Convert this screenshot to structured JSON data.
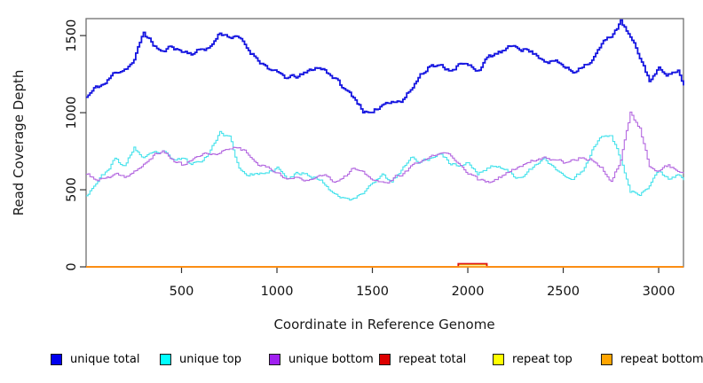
{
  "legend": {
    "items": [
      {
        "label": "unique total",
        "color": "#0000EE"
      },
      {
        "label": "unique top",
        "color": "#00FFFF"
      },
      {
        "label": "unique bottom",
        "color": "#A020F0"
      },
      {
        "label": "repeat total",
        "color": "#DD0000"
      },
      {
        "label": "repeat top",
        "color": "#FFFF00"
      },
      {
        "label": "repeat bottom",
        "color": "#FFA500"
      }
    ]
  },
  "chart_data": {
    "type": "line",
    "title": "",
    "xlabel": "Coordinate in Reference Genome",
    "ylabel": "Read Coverage Depth",
    "xlim": [
      0,
      3130
    ],
    "ylim": [
      0,
      1610
    ],
    "x_ticks": [
      500,
      1000,
      1500,
      2000,
      2500,
      3000
    ],
    "y_ticks": [
      0,
      500,
      1000,
      1500
    ],
    "grid": false,
    "legend_position": "bottom",
    "series": [
      {
        "name": "unique total",
        "color": "#1414E0",
        "x": [
          0,
          50,
          100,
          150,
          200,
          250,
          300,
          350,
          400,
          450,
          500,
          550,
          600,
          650,
          700,
          750,
          800,
          850,
          900,
          950,
          1000,
          1050,
          1100,
          1150,
          1200,
          1250,
          1300,
          1350,
          1400,
          1450,
          1500,
          1550,
          1600,
          1650,
          1700,
          1750,
          1800,
          1850,
          1900,
          1950,
          2000,
          2050,
          2100,
          2150,
          2200,
          2250,
          2300,
          2350,
          2400,
          2450,
          2500,
          2550,
          2600,
          2650,
          2700,
          2750,
          2800,
          2850,
          2900,
          2950,
          3000,
          3050,
          3100,
          3130
        ],
        "values": [
          1100,
          1160,
          1190,
          1260,
          1290,
          1340,
          1520,
          1440,
          1390,
          1430,
          1400,
          1390,
          1410,
          1430,
          1520,
          1500,
          1480,
          1400,
          1350,
          1300,
          1250,
          1220,
          1230,
          1250,
          1290,
          1280,
          1230,
          1150,
          1100,
          1020,
          980,
          1050,
          1090,
          1080,
          1150,
          1250,
          1320,
          1300,
          1280,
          1320,
          1300,
          1280,
          1350,
          1380,
          1400,
          1430,
          1420,
          1380,
          1350,
          1340,
          1300,
          1260,
          1320,
          1350,
          1440,
          1500,
          1590,
          1480,
          1350,
          1210,
          1280,
          1260,
          1280,
          1160
        ]
      },
      {
        "name": "unique top",
        "color": "#45E2EC",
        "x": [
          0,
          50,
          100,
          150,
          200,
          250,
          300,
          350,
          400,
          450,
          500,
          550,
          600,
          650,
          700,
          750,
          800,
          850,
          900,
          950,
          1000,
          1050,
          1100,
          1150,
          1200,
          1250,
          1300,
          1350,
          1400,
          1450,
          1500,
          1550,
          1600,
          1650,
          1700,
          1750,
          1800,
          1850,
          1900,
          1950,
          2000,
          2050,
          2100,
          2150,
          2200,
          2250,
          2300,
          2350,
          2400,
          2450,
          2500,
          2550,
          2600,
          2650,
          2700,
          2750,
          2800,
          2850,
          2900,
          2950,
          3000,
          3050,
          3100,
          3130
        ],
        "values": [
          470,
          555,
          615,
          700,
          645,
          775,
          700,
          720,
          740,
          680,
          700,
          660,
          700,
          760,
          880,
          840,
          640,
          600,
          610,
          590,
          640,
          560,
          600,
          610,
          590,
          540,
          480,
          460,
          440,
          480,
          560,
          600,
          540,
          620,
          700,
          680,
          700,
          750,
          680,
          660,
          680,
          600,
          640,
          660,
          620,
          580,
          620,
          650,
          690,
          640,
          600,
          560,
          620,
          760,
          860,
          870,
          700,
          490,
          480,
          520,
          630,
          580,
          610,
          575
        ]
      },
      {
        "name": "unique bottom",
        "color": "#B express",
        "x": [
          0,
          50,
          100,
          150,
          200,
          250,
          300,
          350,
          400,
          450,
          500,
          550,
          600,
          650,
          700,
          750,
          800,
          850,
          900,
          950,
          1000,
          1050,
          1100,
          1150,
          1200,
          1250,
          1300,
          1350,
          1400,
          1450,
          1500,
          1550,
          1600,
          1650,
          1700,
          1750,
          1800,
          1850,
          1900,
          1950,
          2000,
          2050,
          2100,
          2150,
          2200,
          2250,
          2300,
          2350,
          2400,
          2450,
          2500,
          2550,
          2600,
          2650,
          2700,
          2750,
          2800,
          2850,
          2900,
          2950,
          3000,
          3050,
          3100,
          3130
        ],
        "values": [
          600,
          565,
          570,
          585,
          575,
          620,
          655,
          720,
          750,
          700,
          660,
          690,
          720,
          740,
          730,
          770,
          780,
          740,
          680,
          640,
          620,
          570,
          580,
          560,
          600,
          620,
          560,
          600,
          640,
          600,
          560,
          540,
          560,
          600,
          640,
          680,
          700,
          740,
          720,
          660,
          620,
          560,
          540,
          560,
          600,
          640,
          680,
          700,
          720,
          700,
          680,
          700,
          720,
          700,
          640,
          560,
          700,
          1000,
          900,
          660,
          620,
          660,
          620,
          600
        ]
      },
      {
        "name": "repeat total",
        "color": "#E01212",
        "x": [
          0,
          1945,
          1950,
          2095,
          2100,
          3130
        ],
        "values": [
          0,
          0,
          20,
          20,
          0,
          0
        ]
      },
      {
        "name": "repeat top",
        "color": "#F2E51F",
        "x": [
          0,
          1945,
          1950,
          2095,
          2100,
          3130
        ],
        "values": [
          0,
          0,
          14,
          14,
          0,
          0
        ]
      },
      {
        "name": "repeat bottom",
        "color": "#FF9912",
        "x": [
          0,
          3130
        ],
        "values": [
          0,
          0
        ]
      }
    ]
  }
}
